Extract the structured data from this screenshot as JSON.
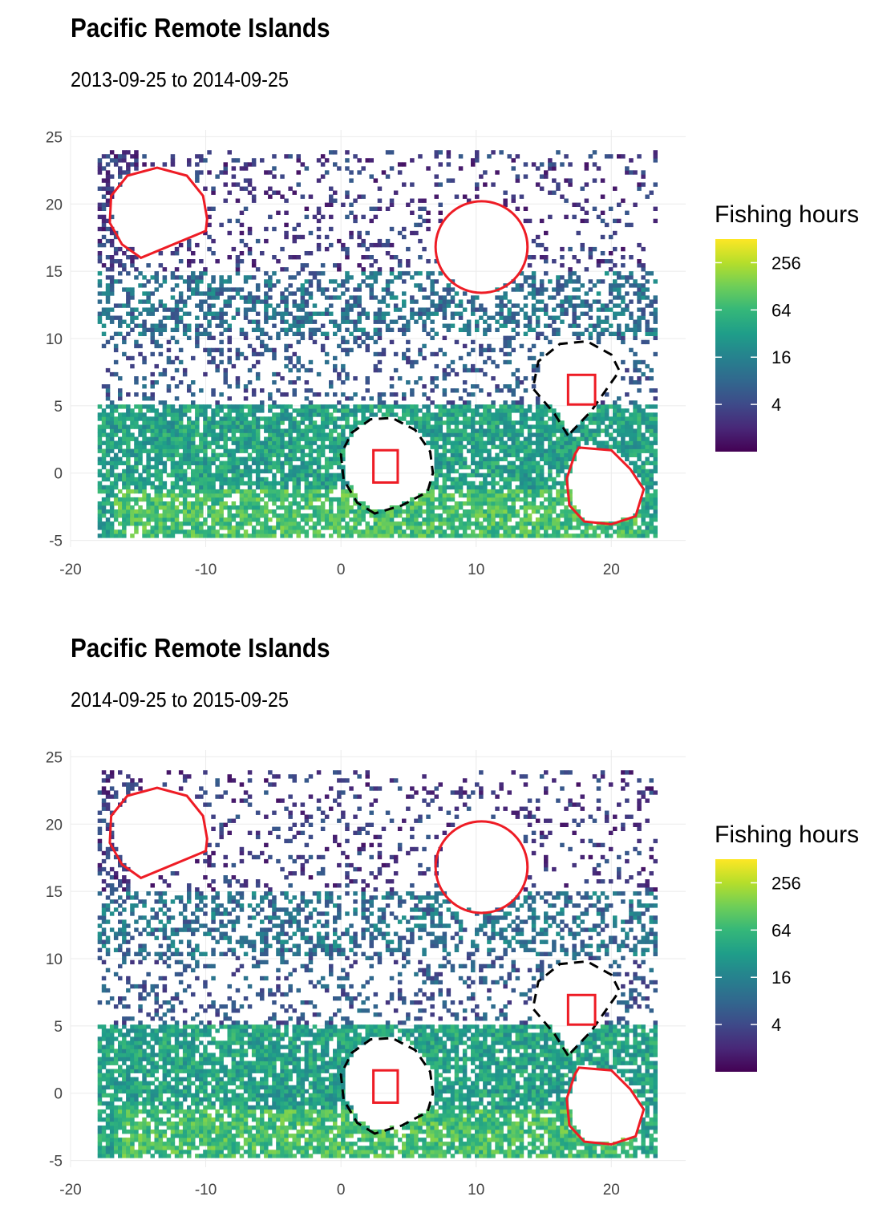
{
  "chart_data": [
    {
      "type": "heatmap",
      "title": "Pacific Remote Islands",
      "subtitle": "2013-09-25 to 2014-09-25",
      "xlim": [
        -20,
        25.5
      ],
      "ylim": [
        -5.5,
        25.5
      ],
      "x_ticks": [
        -20,
        -10,
        0,
        10,
        20
      ],
      "y_ticks": [
        -5,
        0,
        5,
        10,
        15,
        20,
        25
      ],
      "grid": true,
      "legend": {
        "title": "Fishing hours",
        "position": "right",
        "scale": "log2",
        "ticks": [
          4,
          16,
          64,
          256
        ],
        "colormap": "viridis",
        "range": [
          1,
          512
        ]
      },
      "boundaries": [
        {
          "kind": "mpa",
          "color": "#ee1c25",
          "style": "solid",
          "points": [
            [
              -14.8,
              16.0
            ],
            [
              -16.2,
              17.0
            ],
            [
              -17.1,
              18.6
            ],
            [
              -17.0,
              20.6
            ],
            [
              -15.8,
              22.1
            ],
            [
              -13.6,
              22.7
            ],
            [
              -11.4,
              22.1
            ],
            [
              -10.2,
              20.6
            ],
            [
              -9.9,
              18.9
            ],
            [
              -10.0,
              18.0
            ]
          ]
        },
        {
          "kind": "mpa",
          "color": "#ee1c25",
          "style": "solid",
          "circle": [
            10.4,
            16.8,
            3.4
          ]
        },
        {
          "kind": "mpa",
          "color": "#ee1c25",
          "style": "solid",
          "points": [
            [
              17.6,
              1.9
            ],
            [
              20.0,
              1.7
            ],
            [
              21.4,
              0.3
            ],
            [
              22.4,
              -1.2
            ],
            [
              21.8,
              -3.2
            ],
            [
              20.0,
              -3.8
            ],
            [
              18.0,
              -3.6
            ],
            [
              16.9,
              -2.4
            ],
            [
              16.7,
              -0.4
            ],
            [
              17.3,
              1.4
            ]
          ]
        },
        {
          "kind": "eez",
          "color": "#000000",
          "style": "dashed",
          "points": [
            [
              2.5,
              -3.0
            ],
            [
              1.2,
              -2.2
            ],
            [
              0.2,
              -0.5
            ],
            [
              0.0,
              1.4
            ],
            [
              0.8,
              3.0
            ],
            [
              2.2,
              4.0
            ],
            [
              3.8,
              4.1
            ],
            [
              5.5,
              3.2
            ],
            [
              6.6,
              1.6
            ],
            [
              6.8,
              0.0
            ],
            [
              6.4,
              -1.4
            ],
            [
              4.5,
              -2.4
            ]
          ]
        },
        {
          "kind": "eez",
          "color": "#000000",
          "style": "dashed",
          "points": [
            [
              16.8,
              2.8
            ],
            [
              15.8,
              4.4
            ],
            [
              14.2,
              6.3
            ],
            [
              14.6,
              8.3
            ],
            [
              16.2,
              9.6
            ],
            [
              18.2,
              9.8
            ],
            [
              20.0,
              8.8
            ],
            [
              20.6,
              7.6
            ],
            [
              18.5,
              4.6
            ]
          ]
        },
        {
          "kind": "island-box",
          "color": "#ee1c25",
          "style": "solid",
          "rect": [
            2.4,
            -0.7,
            4.2,
            1.7
          ]
        },
        {
          "kind": "island-box",
          "color": "#ee1c25",
          "style": "solid",
          "rect": [
            16.8,
            5.1,
            18.8,
            7.3
          ]
        }
      ]
    },
    {
      "type": "heatmap",
      "title": "Pacific Remote Islands",
      "subtitle": "2014-09-25 to 2015-09-25",
      "xlim": [
        -20,
        25.5
      ],
      "ylim": [
        -5.5,
        25.5
      ],
      "x_ticks": [
        -20,
        -10,
        0,
        10,
        20
      ],
      "y_ticks": [
        -5,
        0,
        5,
        10,
        15,
        20,
        25
      ],
      "grid": true,
      "legend": {
        "title": "Fishing hours",
        "position": "right",
        "scale": "log2",
        "ticks": [
          4,
          16,
          64,
          256
        ],
        "colormap": "viridis",
        "range": [
          1,
          512
        ]
      },
      "boundaries": [
        {
          "kind": "mpa",
          "color": "#ee1c25",
          "style": "solid",
          "points": [
            [
              -14.8,
              16.0
            ],
            [
              -16.2,
              17.0
            ],
            [
              -17.1,
              18.6
            ],
            [
              -17.0,
              20.6
            ],
            [
              -15.8,
              22.1
            ],
            [
              -13.6,
              22.7
            ],
            [
              -11.4,
              22.1
            ],
            [
              -10.2,
              20.6
            ],
            [
              -9.9,
              18.9
            ],
            [
              -10.0,
              18.0
            ]
          ]
        },
        {
          "kind": "mpa",
          "color": "#ee1c25",
          "style": "solid",
          "circle": [
            10.4,
            16.8,
            3.4
          ]
        },
        {
          "kind": "mpa",
          "color": "#ee1c25",
          "style": "solid",
          "points": [
            [
              17.6,
              1.9
            ],
            [
              20.0,
              1.7
            ],
            [
              21.4,
              0.3
            ],
            [
              22.4,
              -1.2
            ],
            [
              21.8,
              -3.2
            ],
            [
              20.0,
              -3.8
            ],
            [
              18.0,
              -3.6
            ],
            [
              16.9,
              -2.4
            ],
            [
              16.7,
              -0.4
            ],
            [
              17.3,
              1.4
            ]
          ]
        },
        {
          "kind": "eez",
          "color": "#000000",
          "style": "dashed",
          "points": [
            [
              2.5,
              -3.0
            ],
            [
              1.2,
              -2.2
            ],
            [
              0.2,
              -0.5
            ],
            [
              0.0,
              1.4
            ],
            [
              0.8,
              3.0
            ],
            [
              2.2,
              4.0
            ],
            [
              3.8,
              4.1
            ],
            [
              5.5,
              3.2
            ],
            [
              6.6,
              1.6
            ],
            [
              6.8,
              0.0
            ],
            [
              6.4,
              -1.4
            ],
            [
              4.5,
              -2.4
            ]
          ]
        },
        {
          "kind": "eez",
          "color": "#000000",
          "style": "dashed",
          "points": [
            [
              16.8,
              2.8
            ],
            [
              15.8,
              4.4
            ],
            [
              14.2,
              6.3
            ],
            [
              14.6,
              8.3
            ],
            [
              16.2,
              9.6
            ],
            [
              18.2,
              9.8
            ],
            [
              20.0,
              8.8
            ],
            [
              20.6,
              7.6
            ],
            [
              18.5,
              4.6
            ]
          ]
        },
        {
          "kind": "island-box",
          "color": "#ee1c25",
          "style": "solid",
          "rect": [
            2.4,
            -0.7,
            4.2,
            1.7
          ]
        },
        {
          "kind": "island-box",
          "color": "#ee1c25",
          "style": "solid",
          "rect": [
            16.8,
            5.1,
            18.8,
            7.3
          ]
        }
      ]
    }
  ],
  "colors": {
    "viridis": [
      "#440154",
      "#482878",
      "#3e4a89",
      "#31688e",
      "#26828e",
      "#1f9e89",
      "#35b779",
      "#6ece58",
      "#b5de2b",
      "#fde725"
    ],
    "grid": "#ebebeb",
    "mpa": "#ee1c25",
    "eez": "#000000"
  }
}
